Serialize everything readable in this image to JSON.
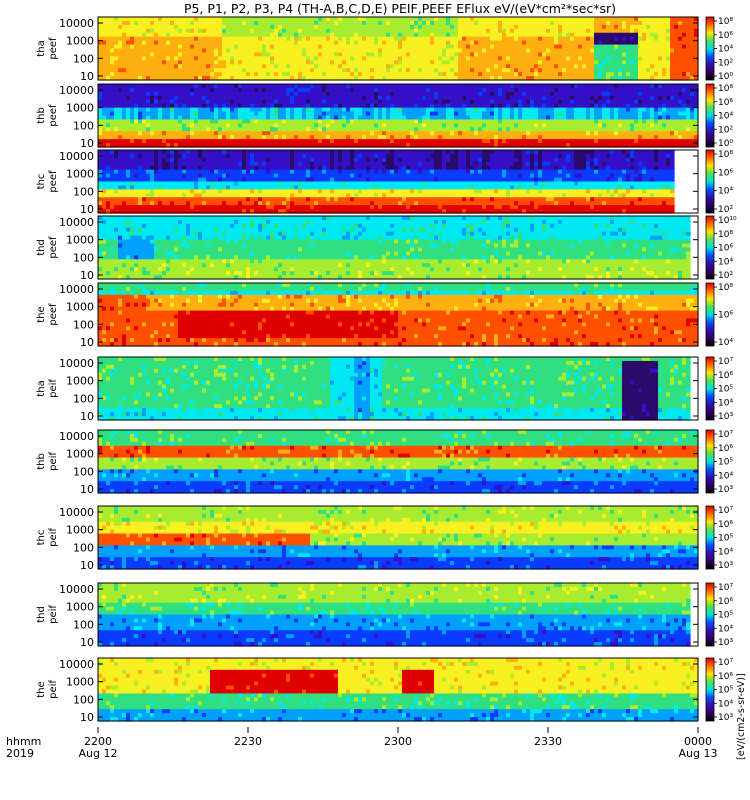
{
  "chart_data": {
    "type": "heatmap",
    "title": "P5, P1, P2, P3, P4 (TH-A,B,C,D,E) PEIF,PEEF EFlux eV/(eV*cm²*sec*sr)",
    "x_row_labels": [
      "hhmm",
      "2019"
    ],
    "x_ticks": [
      {
        "t": "2200",
        "d": "Aug 12"
      },
      {
        "t": "2230",
        "d": ""
      },
      {
        "t": "2300",
        "d": ""
      },
      {
        "t": "2330",
        "d": ""
      },
      {
        "t": "0000",
        "d": "Aug 13"
      }
    ],
    "xlim_minutes": [
      0,
      120
    ],
    "y_scale": "log",
    "y_ticks": [
      "10",
      "100",
      "1000",
      "10000"
    ],
    "colorbar_scale": "log",
    "colorbar_unit_label": "[eV/(cm2-s-sr-eV)]",
    "panels": [
      {
        "label1": "tha",
        "label2": "peef",
        "cb": [
          "10⁰",
          "10²",
          "10⁴",
          "10⁶",
          "10⁸"
        ]
      },
      {
        "label1": "thb",
        "label2": "peef",
        "cb": [
          "10⁰",
          "10²",
          "10⁴",
          "10⁶",
          "10⁸"
        ]
      },
      {
        "label1": "thc",
        "label2": "peef",
        "cb": [
          "10²",
          "10⁴",
          "10⁶",
          "10⁸"
        ]
      },
      {
        "label1": "thd",
        "label2": "peef",
        "cb": [
          "10²",
          "10⁴",
          "10⁶",
          "10⁸",
          "10¹⁰"
        ]
      },
      {
        "label1": "the",
        "label2": "peef",
        "cb": [
          "10⁴",
          "10⁶",
          "10⁸"
        ]
      },
      {
        "label1": "tha",
        "label2": "peif",
        "cb": [
          "10³",
          "10⁴",
          "10⁵",
          "10⁶",
          "10⁷"
        ]
      },
      {
        "label1": "thb",
        "label2": "peif",
        "cb": [
          "10³",
          "10⁴",
          "10⁵",
          "10⁶",
          "10⁷"
        ]
      },
      {
        "label1": "thc",
        "label2": "peif",
        "cb": [
          "10³",
          "10⁴",
          "10⁵",
          "10⁶",
          "10⁷"
        ]
      },
      {
        "label1": "thd",
        "label2": "peif",
        "cb": [
          "10³",
          "10⁴",
          "10⁵",
          "10⁶",
          "10⁷"
        ]
      },
      {
        "label1": "the",
        "label2": "peif",
        "cb": [
          "10³",
          "10⁴",
          "10⁵",
          "10⁶",
          "10⁷"
        ]
      }
    ],
    "colors": {
      "palette": [
        "#2a0a6b",
        "#3410c8",
        "#0a3cff",
        "#00a0ff",
        "#00e8f0",
        "#30e080",
        "#a8ec30",
        "#f8f020",
        "#ffb010",
        "#ff5000",
        "#e00000"
      ],
      "cb_gradient": [
        "#e00000",
        "#ff6a00",
        "#ffe400",
        "#50e050",
        "#00e0e0",
        "#0050ff",
        "#3010b0",
        "#300060",
        "#000000"
      ]
    }
  }
}
